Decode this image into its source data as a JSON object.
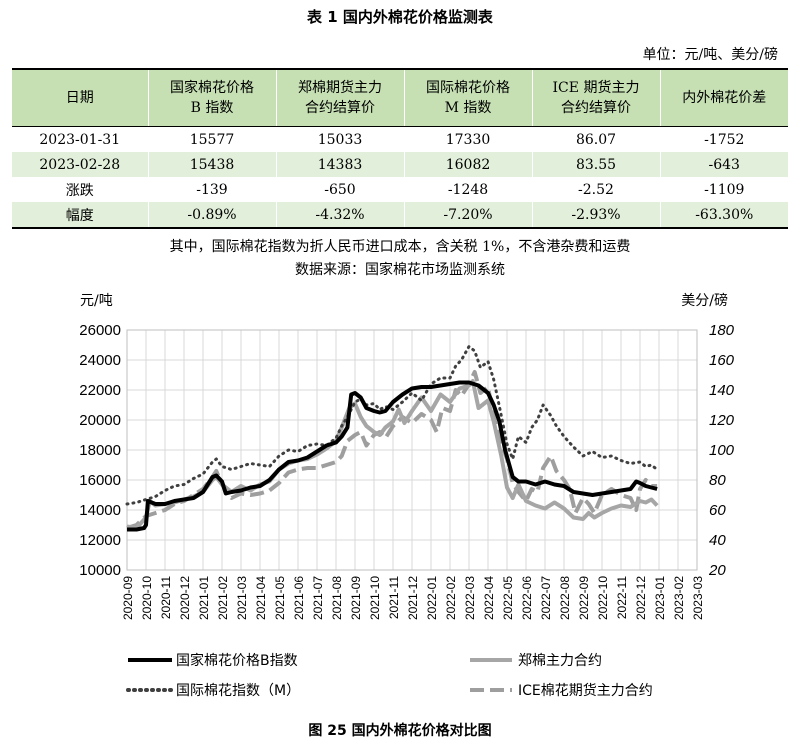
{
  "table": {
    "title": "表 1  国内外棉花价格监测表",
    "unit": "单位：元/吨、美分/磅",
    "headers": [
      {
        "line1": "日期",
        "line2": ""
      },
      {
        "line1": "国家棉花价格",
        "line2": "B 指数"
      },
      {
        "line1": "郑棉期货主力",
        "line2": "合约结算价"
      },
      {
        "line1": "国际棉花价格",
        "line2": "M 指数"
      },
      {
        "line1": "ICE 期货主力",
        "line2": "合约结算价"
      },
      {
        "line1": "内外棉花价差",
        "line2": ""
      }
    ],
    "rows": [
      [
        "2023-01-31",
        "15577",
        "15033",
        "17330",
        "86.07",
        "-1752"
      ],
      [
        "2023-02-28",
        "15438",
        "14383",
        "16082",
        "83.55",
        "-643"
      ],
      [
        "涨跌",
        "-139",
        "-650",
        "-1248",
        "-2.52",
        "-1109"
      ],
      [
        "幅度",
        "-0.89%",
        "-4.32%",
        "-7.20%",
        "-2.93%",
        "-63.30%"
      ]
    ],
    "note1": "其中，国际棉花指数为折人民币进口成本，含关税 1%，不含港杂费和运费",
    "note2": "数据来源：国家棉花市场监测系统"
  },
  "figure_title": "图 25   国内外棉花价格对比图",
  "chart_data": {
    "type": "line",
    "ylabel_left": "元/吨",
    "ylabel_right": "美分/磅",
    "ylim_left": [
      10000,
      26000
    ],
    "yticks_left": [
      "10000",
      "12000",
      "14000",
      "16000",
      "18000",
      "20000",
      "22000",
      "24000",
      "26000"
    ],
    "ylim_right": [
      20,
      180
    ],
    "yticks_right": [
      "20",
      "40",
      "60",
      "80",
      "100",
      "120",
      "140",
      "160",
      "180"
    ],
    "x_categories": [
      "2020-09",
      "2020-10",
      "2020-11",
      "2020-12",
      "2021-01",
      "2021-02",
      "2021-03",
      "2021-04",
      "2021-05",
      "2021-06",
      "2021-07",
      "2021-08",
      "2021-09",
      "2021-10",
      "2021-11",
      "2021-12",
      "2022-01",
      "2022-02",
      "2022-03",
      "2022-04",
      "2022-05",
      "2022-06",
      "2022-07",
      "2022-08",
      "2022-09",
      "2022-10",
      "2022-11",
      "2022-12",
      "2023-01",
      "2023-02",
      "2023-03"
    ],
    "grid": true,
    "legend_position": "bottom",
    "series": [
      {
        "name": "国家棉花价格B指数",
        "axis": "left",
        "color": "#000000",
        "style": "solid",
        "values": [
          [
            0,
            12700
          ],
          [
            0.5,
            12700
          ],
          [
            0.9,
            12800
          ],
          [
            1.0,
            13000
          ],
          [
            1.1,
            14600
          ],
          [
            1.5,
            14400
          ],
          [
            2,
            14400
          ],
          [
            2.5,
            14600
          ],
          [
            3,
            14700
          ],
          [
            3.5,
            14800
          ],
          [
            4,
            15200
          ],
          [
            4.5,
            16200
          ],
          [
            4.7,
            16300
          ],
          [
            5,
            15900
          ],
          [
            5.2,
            15100
          ],
          [
            5.5,
            15200
          ],
          [
            6,
            15300
          ],
          [
            6.5,
            15500
          ],
          [
            7,
            15600
          ],
          [
            7.5,
            16000
          ],
          [
            8,
            16700
          ],
          [
            8.5,
            17200
          ],
          [
            9,
            17300
          ],
          [
            9.5,
            17500
          ],
          [
            10,
            17900
          ],
          [
            10.5,
            18300
          ],
          [
            11,
            18500
          ],
          [
            11.3,
            18900
          ],
          [
            11.6,
            19500
          ],
          [
            11.8,
            21700
          ],
          [
            12,
            21800
          ],
          [
            12.3,
            21500
          ],
          [
            12.6,
            20800
          ],
          [
            13,
            20600
          ],
          [
            13.3,
            20500
          ],
          [
            13.6,
            20600
          ],
          [
            14,
            21200
          ],
          [
            14.5,
            21700
          ],
          [
            15,
            22100
          ],
          [
            15.5,
            22200
          ],
          [
            16,
            22200
          ],
          [
            16.5,
            22300
          ],
          [
            17,
            22400
          ],
          [
            17.5,
            22500
          ],
          [
            18,
            22500
          ],
          [
            18.5,
            22300
          ],
          [
            19,
            21800
          ],
          [
            19.3,
            21000
          ],
          [
            19.6,
            19900
          ],
          [
            19.9,
            18000
          ],
          [
            20.3,
            16200
          ],
          [
            20.6,
            15900
          ],
          [
            21,
            15900
          ],
          [
            21.5,
            15700
          ],
          [
            22,
            15900
          ],
          [
            22.5,
            15700
          ],
          [
            23,
            15600
          ],
          [
            23.5,
            15200
          ],
          [
            24,
            15100
          ],
          [
            24.5,
            15000
          ],
          [
            25,
            15100
          ],
          [
            25.5,
            15200
          ],
          [
            26,
            15300
          ],
          [
            26.5,
            15400
          ],
          [
            26.8,
            15900
          ],
          [
            27,
            15800
          ],
          [
            27.3,
            15600
          ],
          [
            27.6,
            15500
          ],
          [
            27.9,
            15400
          ]
        ]
      },
      {
        "name": "郑棉主力合约",
        "axis": "left",
        "color": "#a6a6a6",
        "style": "solid",
        "values": [
          [
            0,
            12900
          ],
          [
            0.5,
            12800
          ],
          [
            1,
            13500
          ],
          [
            1.2,
            14600
          ],
          [
            1.5,
            14300
          ],
          [
            2,
            14400
          ],
          [
            2.5,
            14500
          ],
          [
            3,
            14700
          ],
          [
            3.5,
            14900
          ],
          [
            4,
            15200
          ],
          [
            4.5,
            16000
          ],
          [
            4.7,
            16200
          ],
          [
            5,
            15700
          ],
          [
            5.5,
            15200
          ],
          [
            6,
            15600
          ],
          [
            6.5,
            15300
          ],
          [
            7,
            15700
          ],
          [
            7.5,
            15900
          ],
          [
            8,
            16700
          ],
          [
            8.5,
            17100
          ],
          [
            9,
            17300
          ],
          [
            9.5,
            17400
          ],
          [
            10,
            17700
          ],
          [
            10.5,
            18100
          ],
          [
            11,
            18600
          ],
          [
            11.3,
            19500
          ],
          [
            11.7,
            20800
          ],
          [
            12,
            21100
          ],
          [
            12.3,
            20200
          ],
          [
            12.6,
            19600
          ],
          [
            13,
            19200
          ],
          [
            13.3,
            19000
          ],
          [
            13.6,
            19500
          ],
          [
            14,
            19900
          ],
          [
            14.3,
            20700
          ],
          [
            14.6,
            19800
          ],
          [
            15,
            20600
          ],
          [
            15.5,
            21500
          ],
          [
            16,
            20600
          ],
          [
            16.5,
            21700
          ],
          [
            17,
            21200
          ],
          [
            17.5,
            22100
          ],
          [
            18,
            22300
          ],
          [
            18.2,
            22600
          ],
          [
            18.5,
            20800
          ],
          [
            19,
            21300
          ],
          [
            19.3,
            19900
          ],
          [
            19.7,
            17600
          ],
          [
            20,
            15500
          ],
          [
            20.3,
            14800
          ],
          [
            20.6,
            15700
          ],
          [
            21,
            14600
          ],
          [
            21.5,
            14300
          ],
          [
            22,
            14100
          ],
          [
            22.5,
            14500
          ],
          [
            23,
            14100
          ],
          [
            23.5,
            13500
          ],
          [
            24,
            13400
          ],
          [
            24.3,
            13800
          ],
          [
            24.6,
            13500
          ],
          [
            25,
            13800
          ],
          [
            25.5,
            14100
          ],
          [
            26,
            14300
          ],
          [
            26.5,
            14200
          ],
          [
            27,
            14600
          ],
          [
            27.3,
            14500
          ],
          [
            27.6,
            14700
          ],
          [
            27.9,
            14300
          ]
        ]
      },
      {
        "name": "国际棉花指数（M）",
        "axis": "left",
        "color": "#404040",
        "style": "dotted",
        "values": [
          [
            0,
            14400
          ],
          [
            0.5,
            14500
          ],
          [
            1,
            14700
          ],
          [
            1.5,
            14900
          ],
          [
            2,
            15300
          ],
          [
            2.5,
            15600
          ],
          [
            3,
            15700
          ],
          [
            3.5,
            16100
          ],
          [
            4,
            16400
          ],
          [
            4.5,
            17200
          ],
          [
            4.7,
            17400
          ],
          [
            5,
            16900
          ],
          [
            5.5,
            16700
          ],
          [
            6,
            16900
          ],
          [
            6.5,
            17100
          ],
          [
            7,
            17000
          ],
          [
            7.5,
            16900
          ],
          [
            8,
            17600
          ],
          [
            8.5,
            18000
          ],
          [
            9,
            17900
          ],
          [
            9.5,
            18300
          ],
          [
            10,
            18400
          ],
          [
            10.5,
            18300
          ],
          [
            11,
            18800
          ],
          [
            11.3,
            19600
          ],
          [
            11.6,
            20200
          ],
          [
            12,
            21200
          ],
          [
            12.3,
            21400
          ],
          [
            12.6,
            21000
          ],
          [
            13,
            21100
          ],
          [
            13.3,
            20700
          ],
          [
            13.6,
            20900
          ],
          [
            14,
            20700
          ],
          [
            14.5,
            21200
          ],
          [
            15,
            21800
          ],
          [
            15.5,
            21300
          ],
          [
            16,
            22400
          ],
          [
            16.5,
            22800
          ],
          [
            17,
            22800
          ],
          [
            17.3,
            23600
          ],
          [
            17.6,
            24000
          ],
          [
            18,
            24900
          ],
          [
            18.3,
            24600
          ],
          [
            18.6,
            23500
          ],
          [
            19,
            23900
          ],
          [
            19.3,
            22700
          ],
          [
            19.6,
            20900
          ],
          [
            20,
            18400
          ],
          [
            20.3,
            17400
          ],
          [
            20.6,
            18900
          ],
          [
            21,
            18500
          ],
          [
            21.3,
            19500
          ],
          [
            21.6,
            20000
          ],
          [
            21.9,
            21000
          ],
          [
            22.3,
            20300
          ],
          [
            22.6,
            19600
          ],
          [
            23,
            18900
          ],
          [
            23.5,
            18200
          ],
          [
            24,
            17600
          ],
          [
            24.5,
            17900
          ],
          [
            25,
            17500
          ],
          [
            25.5,
            17600
          ],
          [
            26,
            17300
          ],
          [
            26.5,
            17100
          ],
          [
            27,
            17200
          ],
          [
            27.3,
            16900
          ],
          [
            27.6,
            17000
          ],
          [
            27.9,
            16700
          ]
        ]
      },
      {
        "name": "ICE棉花期货主力合约",
        "axis": "right",
        "color": "#9e9e9e",
        "style": "dashed",
        "values": [
          [
            0,
            48
          ],
          [
            0.5,
            50
          ],
          [
            1,
            56
          ],
          [
            1.5,
            58
          ],
          [
            2,
            60
          ],
          [
            2.5,
            64
          ],
          [
            3,
            66
          ],
          [
            3.5,
            70
          ],
          [
            4,
            74
          ],
          [
            4.5,
            82
          ],
          [
            4.7,
            86
          ],
          [
            5,
            77
          ],
          [
            5.5,
            68
          ],
          [
            6,
            71
          ],
          [
            6.5,
            70
          ],
          [
            7,
            71
          ],
          [
            7.5,
            73
          ],
          [
            8,
            78
          ],
          [
            8.5,
            85
          ],
          [
            9,
            87
          ],
          [
            9.5,
            88
          ],
          [
            10,
            88
          ],
          [
            10.5,
            90
          ],
          [
            11,
            92
          ],
          [
            11.3,
            96
          ],
          [
            11.6,
            106
          ],
          [
            12,
            110
          ],
          [
            12.3,
            112
          ],
          [
            12.6,
            103
          ],
          [
            13,
            110
          ],
          [
            13.3,
            112
          ],
          [
            13.6,
            108
          ],
          [
            14,
            116
          ],
          [
            14.5,
            122
          ],
          [
            15,
            118
          ],
          [
            15.5,
            124
          ],
          [
            16,
            120
          ],
          [
            16.3,
            112
          ],
          [
            16.6,
            128
          ],
          [
            17,
            126
          ],
          [
            17.3,
            140
          ],
          [
            17.6,
            136
          ],
          [
            18,
            144
          ],
          [
            18.3,
            152
          ],
          [
            18.6,
            138
          ],
          [
            19,
            142
          ],
          [
            19.3,
            122
          ],
          [
            19.6,
            108
          ],
          [
            20,
            94
          ],
          [
            20.3,
            78
          ],
          [
            20.6,
            72
          ],
          [
            21,
            66
          ],
          [
            21.3,
            74
          ],
          [
            21.6,
            72
          ],
          [
            21.9,
            88
          ],
          [
            22.3,
            96
          ],
          [
            22.6,
            86
          ],
          [
            23,
            80
          ],
          [
            23.3,
            74
          ],
          [
            23.6,
            58
          ],
          [
            24,
            68
          ],
          [
            24.3,
            64
          ],
          [
            24.6,
            58
          ],
          [
            25,
            70
          ],
          [
            25.5,
            74
          ],
          [
            26,
            70
          ],
          [
            26.5,
            68
          ],
          [
            26.8,
            60
          ],
          [
            27,
            74
          ],
          [
            27.3,
            80
          ],
          [
            27.6,
            76
          ],
          [
            27.9,
            76
          ]
        ]
      }
    ]
  }
}
